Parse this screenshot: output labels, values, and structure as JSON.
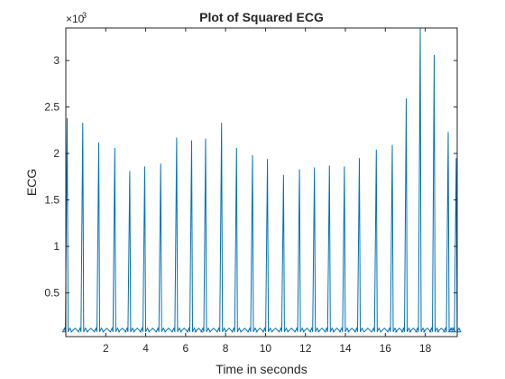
{
  "chart_data": {
    "type": "line",
    "title": "Plot of Squared ECG",
    "xlabel": "Time in seconds",
    "ylabel": "ECG",
    "y_exponent_label": "×10",
    "y_exponent_power": "-3",
    "xlim": [
      0,
      19.6
    ],
    "ylim": [
      0.03,
      3.35
    ],
    "grid": false,
    "x_ticks": [
      2,
      4,
      6,
      8,
      10,
      12,
      14,
      16,
      18
    ],
    "x_tick_labels": [
      "2",
      "4",
      "6",
      "8",
      "10",
      "12",
      "14",
      "16",
      "18"
    ],
    "y_ticks": [
      0.5,
      1,
      1.5,
      2,
      2.5,
      3
    ],
    "y_tick_labels": [
      "0.5",
      "1",
      "1.5",
      "2",
      "2.5",
      "3"
    ],
    "series": [
      {
        "color": "#0072bd",
        "peaks": [
          {
            "x": 0.07,
            "y": 2.38
          },
          {
            "x": 0.85,
            "y": 2.33
          },
          {
            "x": 1.65,
            "y": 2.12
          },
          {
            "x": 2.45,
            "y": 2.06
          },
          {
            "x": 3.2,
            "y": 1.81
          },
          {
            "x": 3.95,
            "y": 1.86
          },
          {
            "x": 4.75,
            "y": 1.89
          },
          {
            "x": 5.55,
            "y": 2.17
          },
          {
            "x": 6.3,
            "y": 2.14
          },
          {
            "x": 7.0,
            "y": 2.16
          },
          {
            "x": 7.8,
            "y": 2.33
          },
          {
            "x": 8.55,
            "y": 2.06
          },
          {
            "x": 9.35,
            "y": 1.98
          },
          {
            "x": 10.1,
            "y": 1.94
          },
          {
            "x": 10.9,
            "y": 1.77
          },
          {
            "x": 11.7,
            "y": 1.83
          },
          {
            "x": 12.45,
            "y": 1.85
          },
          {
            "x": 13.2,
            "y": 1.87
          },
          {
            "x": 13.95,
            "y": 1.86
          },
          {
            "x": 14.7,
            "y": 1.95
          },
          {
            "x": 15.55,
            "y": 2.04
          },
          {
            "x": 16.35,
            "y": 2.09
          },
          {
            "x": 17.05,
            "y": 2.59
          },
          {
            "x": 17.75,
            "y": 3.35
          },
          {
            "x": 18.45,
            "y": 3.06
          },
          {
            "x": 19.15,
            "y": 2.23
          },
          {
            "x": 19.55,
            "y": 1.95
          }
        ]
      }
    ]
  }
}
